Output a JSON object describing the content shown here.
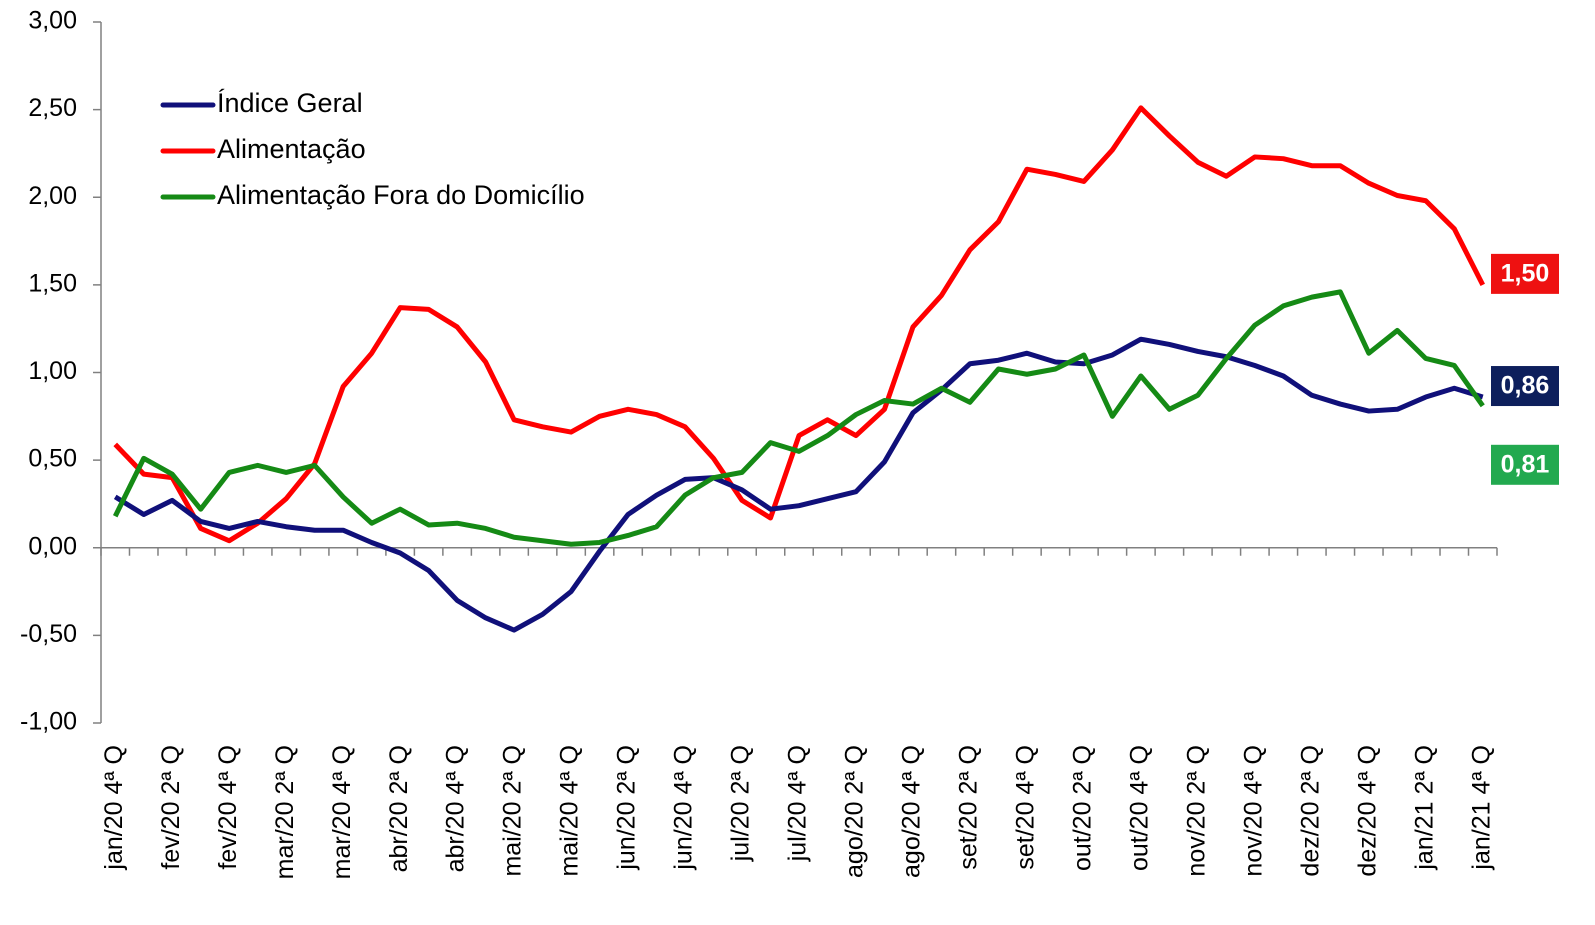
{
  "chart_data": {
    "type": "line",
    "categories": [
      "jan/20 4ª Q",
      null,
      "fev/20 2ª Q",
      null,
      "fev/20 4ª Q",
      null,
      "mar/20 2ª Q",
      null,
      "mar/20 4ª Q",
      null,
      "abr/20 2ª Q",
      null,
      "abr/20 4ª Q",
      null,
      "mai/20 2ª Q",
      null,
      "mai/20 4ª Q",
      null,
      "jun/20 2ª Q",
      null,
      "jun/20 4ª Q",
      null,
      "jul/20 2ª Q",
      null,
      "jul/20 4ª Q",
      null,
      "ago/20 2ª Q",
      null,
      "ago/20 4ª Q",
      null,
      "set/20 2ª Q",
      null,
      "set/20 4ª Q",
      null,
      "out/20 2ª Q",
      null,
      "out/20 4ª Q",
      null,
      "nov/20 2ª Q",
      null,
      "nov/20 4ª Q",
      null,
      "dez/20 2ª Q",
      null,
      "dez/20 4ª Q",
      null,
      "jan/21  2ª Q",
      null,
      "jan/21  4ª Q"
    ],
    "series": [
      {
        "name": "Índice Geral",
        "color": "#10107a",
        "label_color": "#0d1f5c",
        "values": [
          0.29,
          0.19,
          0.27,
          0.15,
          0.11,
          0.15,
          0.12,
          0.1,
          0.1,
          0.03,
          -0.03,
          -0.13,
          -0.3,
          -0.4,
          -0.47,
          -0.38,
          -0.25,
          -0.02,
          0.19,
          0.3,
          0.39,
          0.4,
          0.33,
          0.22,
          0.24,
          0.28,
          0.32,
          0.49,
          0.77,
          0.9,
          1.05,
          1.07,
          1.11,
          1.06,
          1.05,
          1.1,
          1.19,
          1.16,
          1.12,
          1.09,
          1.04,
          0.98,
          0.87,
          0.82,
          0.78,
          0.79,
          0.86,
          0.91,
          0.86
        ],
        "value_labels": [
          null,
          null,
          null,
          null,
          null,
          null,
          null,
          null,
          null,
          null,
          null,
          null,
          null,
          null,
          null,
          null,
          null,
          null,
          null,
          null,
          null,
          null,
          null,
          null,
          null,
          null,
          null,
          null,
          null,
          null,
          null,
          null,
          null,
          null,
          null,
          null,
          null,
          null,
          null,
          null,
          null,
          null,
          null,
          null,
          null,
          null,
          null,
          null,
          "0,86"
        ]
      },
      {
        "name": "Alimentação",
        "color": "#ff0000",
        "label_color": "#ee1111",
        "values": [
          0.59,
          0.42,
          0.4,
          0.11,
          0.04,
          0.14,
          0.28,
          0.48,
          0.92,
          1.11,
          1.37,
          1.36,
          1.26,
          1.06,
          0.73,
          0.69,
          0.66,
          0.75,
          0.79,
          0.76,
          0.69,
          0.51,
          0.27,
          0.17,
          0.64,
          0.73,
          0.64,
          0.79,
          1.26,
          1.44,
          1.7,
          1.86,
          2.16,
          2.13,
          2.09,
          2.27,
          2.51,
          2.35,
          2.2,
          2.12,
          2.23,
          2.22,
          2.18,
          2.18,
          2.08,
          2.01,
          1.98,
          1.82,
          1.5
        ],
        "value_labels": [
          null,
          null,
          null,
          null,
          null,
          null,
          null,
          null,
          null,
          null,
          null,
          null,
          null,
          null,
          null,
          null,
          null,
          null,
          null,
          null,
          null,
          null,
          null,
          null,
          null,
          null,
          null,
          null,
          null,
          null,
          null,
          null,
          null,
          null,
          null,
          null,
          null,
          null,
          null,
          null,
          null,
          null,
          null,
          null,
          null,
          null,
          null,
          null,
          "1,50"
        ]
      },
      {
        "name": "Alimentação Fora do Domicílio",
        "color": "#158a15",
        "label_color": "#22a94f",
        "values": [
          0.18,
          0.51,
          0.42,
          0.22,
          0.43,
          0.47,
          0.43,
          0.47,
          0.29,
          0.14,
          0.22,
          0.13,
          0.14,
          0.11,
          0.06,
          0.04,
          0.02,
          0.03,
          0.07,
          0.12,
          0.3,
          0.4,
          0.43,
          0.6,
          0.55,
          0.64,
          0.76,
          0.84,
          0.82,
          0.91,
          0.83,
          1.02,
          0.99,
          1.02,
          1.1,
          0.75,
          0.98,
          0.79,
          0.87,
          1.08,
          1.27,
          1.38,
          1.43,
          1.46,
          1.11,
          1.24,
          1.08,
          1.04,
          0.81
        ],
        "value_labels": [
          null,
          null,
          null,
          null,
          null,
          null,
          null,
          null,
          null,
          null,
          null,
          null,
          null,
          null,
          null,
          null,
          null,
          null,
          null,
          null,
          null,
          null,
          null,
          null,
          null,
          null,
          null,
          null,
          null,
          null,
          null,
          null,
          null,
          null,
          null,
          null,
          null,
          null,
          null,
          null,
          null,
          null,
          null,
          null,
          null,
          null,
          null,
          null,
          "0,81"
        ]
      }
    ],
    "ylim": [
      -1,
      3
    ],
    "yticks": [
      {
        "value": -1,
        "label": "-1,00"
      },
      {
        "value": -0.5,
        "label": "-0,50"
      },
      {
        "value": 0,
        "label": "0,00"
      },
      {
        "value": 0.5,
        "label": "0,50"
      },
      {
        "value": 1,
        "label": "1,00"
      },
      {
        "value": 1.5,
        "label": "1,50"
      },
      {
        "value": 2,
        "label": "2,00"
      },
      {
        "value": 2.5,
        "label": "2,50"
      },
      {
        "value": 3,
        "label": "3,00"
      }
    ],
    "legend": "upper left"
  }
}
